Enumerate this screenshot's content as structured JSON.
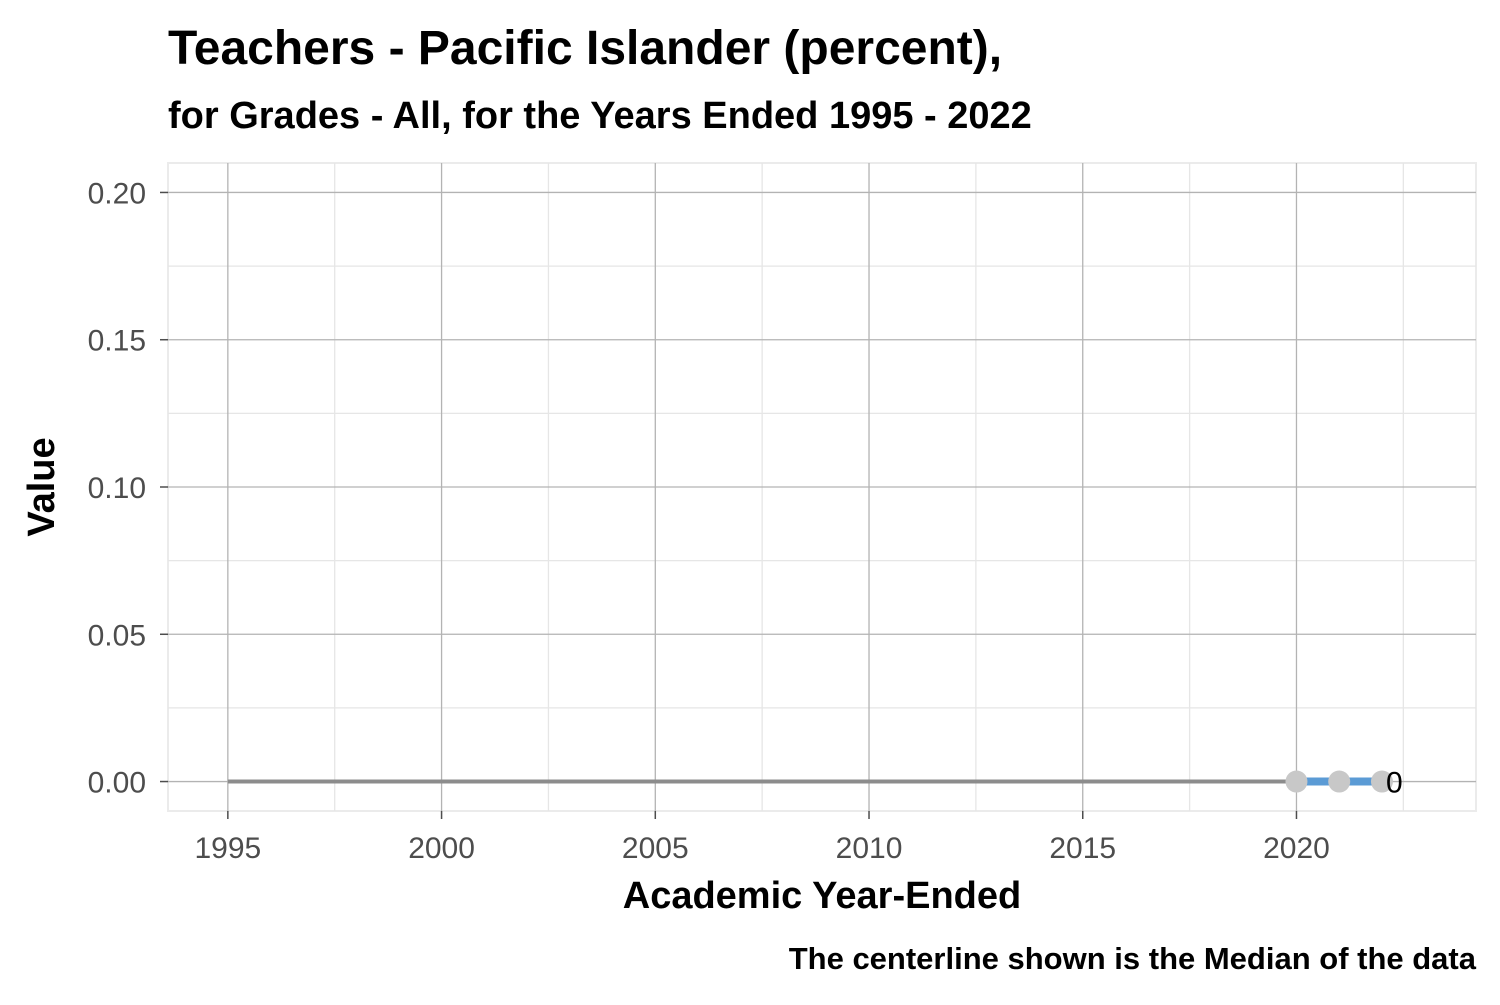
{
  "chart_data": {
    "type": "line",
    "title": "Teachers - Pacific Islander (percent),",
    "subtitle": "for Grades - All, for the Years Ended 1995  -  2022",
    "xlabel": "Academic Year-Ended",
    "ylabel": "Value",
    "caption": "The centerline shown is the Median of the data",
    "xlim": [
      1993.6,
      2024.2
    ],
    "ylim": [
      -0.01,
      0.21
    ],
    "x_ticks": [
      1995,
      2000,
      2005,
      2010,
      2015,
      2020
    ],
    "x_tick_labels": [
      "1995",
      "2000",
      "2005",
      "2010",
      "2015",
      "2020"
    ],
    "y_ticks": [
      0,
      0.05,
      0.1,
      0.15,
      0.2
    ],
    "y_tick_labels": [
      "0.00",
      "0.05",
      "0.10",
      "0.15",
      "0.20"
    ],
    "grid": true,
    "centerline": {
      "value": 0,
      "x_start": 1995,
      "x_end": 2020,
      "color": "#8c8c8c"
    },
    "series": [
      {
        "x": [
          2020,
          2021,
          2022
        ],
        "values": [
          0,
          0,
          0
        ],
        "line_color": "#5b9bd5",
        "point_color": "#c8c8c8"
      }
    ],
    "end_label": {
      "text": "0",
      "x": 2022,
      "y": 0
    }
  }
}
